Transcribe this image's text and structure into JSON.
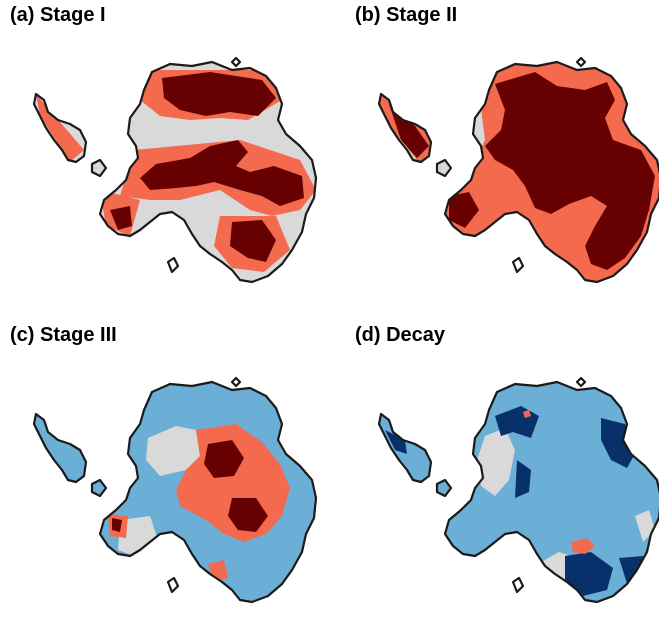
{
  "panels": [
    {
      "label": "(a) Stage I"
    },
    {
      "label": "(b) Stage II"
    },
    {
      "label": "(c) Stage III"
    },
    {
      "label": "(d) Decay"
    }
  ],
  "colors": {
    "coastline": "#1a1a1a",
    "neutral": "#d9d9d9",
    "strong_warm": "#670000",
    "moderate_warm": "#f46a4e",
    "moderate_cool": "#6baed6",
    "strong_cool": "#08306b",
    "white_contour": "#ffffff"
  }
}
